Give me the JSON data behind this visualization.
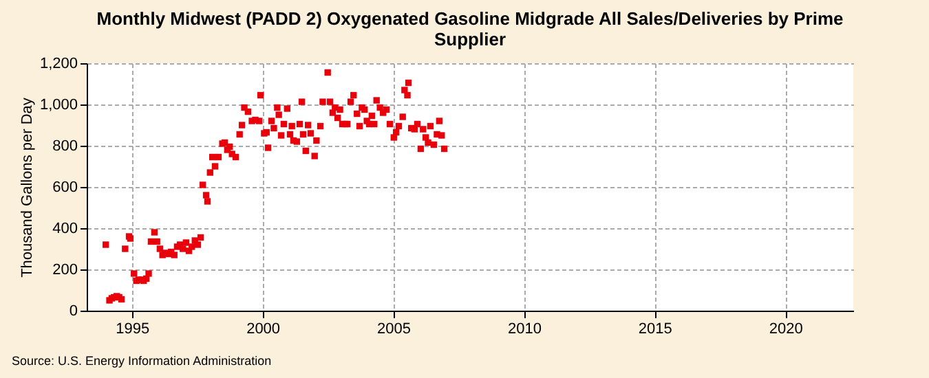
{
  "chart_data": {
    "type": "scatter",
    "title": "Monthly Midwest (PADD 2) Oxygenated Gasoline Midgrade All Sales/Deliveries by Prime Supplier",
    "ylabel": "Thousand Gallons per Day",
    "annotations": [
      "Source: U.S. Energy Information Administration"
    ],
    "x": [
      1994.0,
      1994.14,
      1994.23,
      1994.32,
      1994.42,
      1994.51,
      1994.6,
      1994.74,
      1994.89,
      1994.94,
      1995.08,
      1995.17,
      1995.26,
      1995.36,
      1995.45,
      1995.55,
      1995.64,
      1995.73,
      1995.86,
      1995.96,
      1996.07,
      1996.17,
      1996.26,
      1996.39,
      1996.5,
      1996.62,
      1996.73,
      1996.84,
      1996.95,
      1997.07,
      1997.18,
      1997.29,
      1997.41,
      1997.52,
      1997.63,
      1997.71,
      1997.84,
      1997.89,
      1997.99,
      1998.08,
      1998.18,
      1998.31,
      1998.46,
      1998.55,
      1998.65,
      1998.74,
      1998.83,
      1998.97,
      1999.12,
      1999.21,
      1999.3,
      1999.44,
      1999.59,
      1999.72,
      1999.87,
      1999.92,
      2000.06,
      2000.15,
      2000.21,
      2000.34,
      2000.43,
      2000.56,
      2000.62,
      2000.71,
      2000.81,
      2000.94,
      2001.05,
      2001.12,
      2001.18,
      2001.31,
      2001.42,
      2001.5,
      2001.55,
      2001.65,
      2001.74,
      2001.84,
      2001.99,
      2002.06,
      2002.21,
      2002.3,
      2002.49,
      2002.58,
      2002.68,
      2002.77,
      2002.87,
      2002.96,
      2003.05,
      2003.15,
      2003.24,
      2003.37,
      2003.48,
      2003.61,
      2003.71,
      2003.8,
      2003.9,
      2003.99,
      2004.08,
      2004.18,
      2004.27,
      2004.36,
      2004.49,
      2004.61,
      2004.74,
      2004.87,
      2005.02,
      2005.11,
      2005.21,
      2005.36,
      2005.43,
      2005.54,
      2005.58,
      2005.69,
      2005.81,
      2005.92,
      2006.05,
      2006.14,
      2006.24,
      2006.33,
      2006.42,
      2006.55,
      2006.67,
      2006.76,
      2006.85,
      2006.95
    ],
    "series": [
      {
        "color": "#e8000b",
        "values": [
          320,
          50,
          60,
          65,
          70,
          65,
          55,
          300,
          360,
          350,
          180,
          145,
          150,
          150,
          145,
          155,
          180,
          335,
          380,
          335,
          300,
          270,
          280,
          275,
          285,
          270,
          310,
          320,
          300,
          330,
          290,
          310,
          340,
          320,
          355,
          610,
          560,
          530,
          670,
          745,
          700,
          745,
          810,
          815,
          780,
          795,
          760,
          745,
          855,
          900,
          985,
          965,
          920,
          925,
          920,
          1045,
          860,
          865,
          790,
          920,
          885,
          985,
          950,
          850,
          905,
          980,
          855,
          895,
          825,
          820,
          905,
          1013,
          855,
          775,
          900,
          860,
          750,
          825,
          895,
          1013,
          1155,
          1013,
          960,
          985,
          935,
          975,
          905,
          905,
          905,
          1013,
          1045,
          955,
          895,
          985,
          975,
          920,
          905,
          945,
          905,
          1020,
          985,
          960,
          975,
          905,
          840,
          865,
          895,
          940,
          1070,
          1045,
          1105,
          885,
          880,
          905,
          785,
          880,
          840,
          815,
          895,
          805,
          855,
          920,
          850,
          785
        ]
      }
    ],
    "xlim": [
      1993.27,
      2022.6
    ],
    "xticks": [
      1995,
      2000,
      2005,
      2010,
      2015,
      2020
    ],
    "ylim": [
      0,
      1200
    ],
    "yticks": [
      0,
      200,
      400,
      600,
      800,
      {
        "value": 1000,
        "label": "1,000"
      },
      {
        "value": 1200,
        "label": "1,200"
      }
    ],
    "grid": true,
    "marker": "square"
  }
}
